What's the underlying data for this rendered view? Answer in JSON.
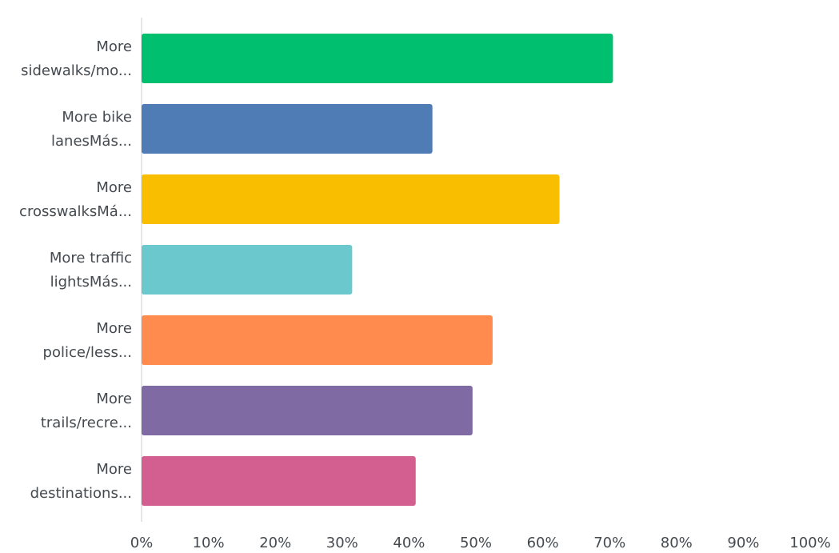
{
  "chart_data": {
    "type": "bar",
    "orientation": "horizontal",
    "categories": [
      [
        "More",
        "sidewalks/mo..."
      ],
      [
        "More bike",
        "lanesMás..."
      ],
      [
        "More",
        "crosswalksMá..."
      ],
      [
        "More traffic",
        "lightsMás..."
      ],
      [
        "More",
        "police/less..."
      ],
      [
        "More",
        "trails/recre..."
      ],
      [
        "More",
        "destinations..."
      ]
    ],
    "values": [
      70.5,
      43.5,
      62.5,
      31.5,
      52.5,
      49.5,
      41
    ],
    "colors": [
      "#00bf6f",
      "#507cb6",
      "#f9be00",
      "#6bc8cd",
      "#ff8b4f",
      "#7f6aa4",
      "#d25f90"
    ],
    "x_ticks": [
      "0%",
      "10%",
      "20%",
      "30%",
      "40%",
      "50%",
      "60%",
      "70%",
      "80%",
      "90%",
      "100%"
    ],
    "xlim": [
      0,
      100
    ],
    "unit": "%",
    "grid": false,
    "legend": "none",
    "title": "",
    "xlabel": "",
    "ylabel": ""
  }
}
